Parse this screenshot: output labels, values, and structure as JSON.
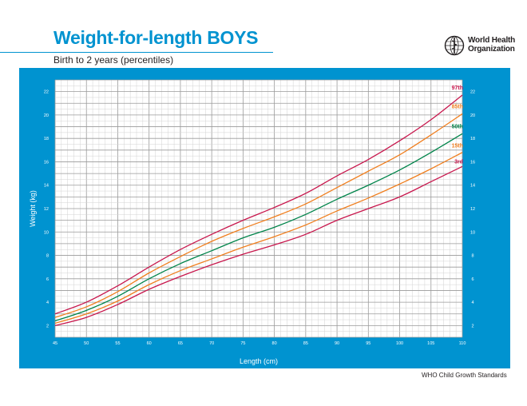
{
  "header": {
    "title": "Weight-for-length BOYS",
    "subtitle": "Birth to 2 years (percentiles)",
    "org_line1": "World Health",
    "org_line2": "Organization"
  },
  "footer": {
    "source": "WHO Child Growth Standards"
  },
  "colors": {
    "brand": "#0093d0",
    "p97": "#c8174d",
    "p85": "#f07f1f",
    "p50": "#00844a",
    "p15": "#f07f1f",
    "p3": "#c8174d"
  },
  "chart_data": {
    "type": "line",
    "xlabel": "Length (cm)",
    "ylabel": "Weight (kg)",
    "xlim": [
      45,
      110
    ],
    "ylim": [
      1,
      23
    ],
    "xticks": [
      45,
      50,
      55,
      60,
      65,
      70,
      75,
      80,
      85,
      90,
      95,
      100,
      105,
      110
    ],
    "yticks": [
      2,
      4,
      6,
      8,
      10,
      12,
      14,
      16,
      18,
      20,
      22
    ],
    "grid": true,
    "x": [
      45,
      50,
      55,
      60,
      65,
      70,
      75,
      80,
      85,
      90,
      95,
      100,
      105,
      110
    ],
    "series": [
      {
        "name": "97th",
        "color": "#c8174d",
        "values": [
          3.0,
          4.0,
          5.4,
          7.0,
          8.5,
          9.8,
          11.0,
          12.1,
          13.3,
          14.8,
          16.2,
          17.8,
          19.6,
          21.7
        ]
      },
      {
        "name": "85th",
        "color": "#f07f1f",
        "values": [
          2.7,
          3.6,
          4.9,
          6.5,
          7.9,
          9.2,
          10.3,
          11.3,
          12.4,
          13.8,
          15.2,
          16.6,
          18.3,
          20.1
        ]
      },
      {
        "name": "50th",
        "color": "#00844a",
        "values": [
          2.4,
          3.3,
          4.5,
          6.0,
          7.3,
          8.4,
          9.5,
          10.4,
          11.5,
          12.8,
          14.0,
          15.3,
          16.8,
          18.4
        ]
      },
      {
        "name": "15th",
        "color": "#f07f1f",
        "values": [
          2.2,
          3.0,
          4.1,
          5.5,
          6.7,
          7.7,
          8.7,
          9.6,
          10.6,
          11.8,
          12.9,
          14.1,
          15.4,
          16.8
        ]
      },
      {
        "name": "3rd",
        "color": "#c8174d",
        "values": [
          2.0,
          2.7,
          3.8,
          5.1,
          6.2,
          7.2,
          8.1,
          8.9,
          9.8,
          11.0,
          12.0,
          13.0,
          14.3,
          15.6
        ]
      }
    ]
  }
}
